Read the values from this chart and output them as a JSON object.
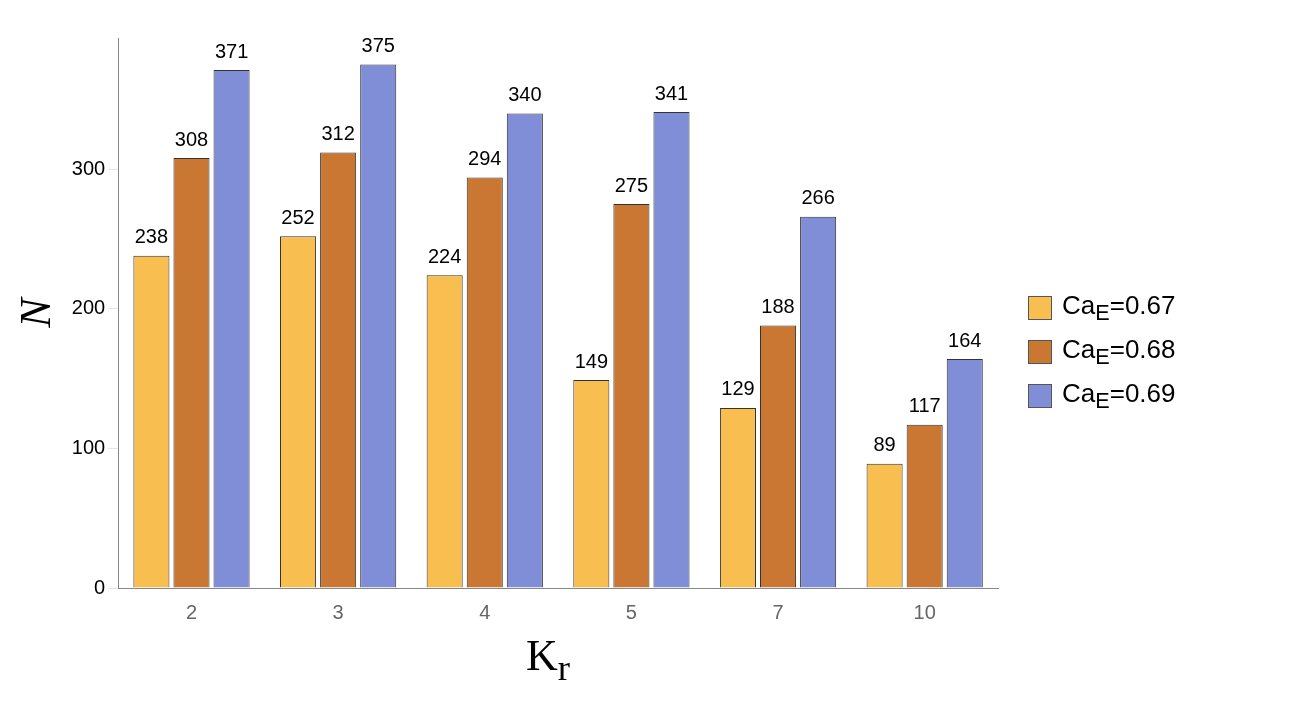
{
  "chart_data": {
    "type": "bar",
    "xlabel": "K$_{r}$",
    "ylabel": "N",
    "categories": [
      "2",
      "3",
      "4",
      "5",
      "7",
      "10"
    ],
    "series": [
      {
        "name": "Ca$_{E}$=0.67",
        "color": "#f9be50",
        "values": [
          238,
          252,
          224,
          149,
          129,
          89
        ]
      },
      {
        "name": "Ca$_{E}$=0.68",
        "color": "#c97733",
        "values": [
          308,
          312,
          294,
          275,
          188,
          117
        ]
      },
      {
        "name": "Ca$_{E}$=0.69",
        "color": "#7f8ed6",
        "values": [
          371,
          375,
          340,
          341,
          266,
          164
        ]
      }
    ],
    "ylim": [
      0,
      394
    ],
    "yticks": [
      0,
      100,
      200,
      300
    ],
    "grid": false,
    "legend": "right",
    "data_labels": true
  }
}
